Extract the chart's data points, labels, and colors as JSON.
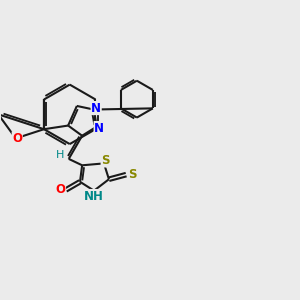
{
  "background_color": "#ebebeb",
  "bond_color": "#1a1a1a",
  "bond_width": 1.5,
  "figsize": [
    3.0,
    3.0
  ],
  "dpi": 100,
  "xlim": [
    0,
    10
  ],
  "ylim": [
    0,
    10
  ],
  "colors": {
    "N": "#0000ff",
    "O": "#ff0000",
    "S": "#888800",
    "NH": "#008888",
    "H": "#008888",
    "C": "#1a1a1a"
  }
}
